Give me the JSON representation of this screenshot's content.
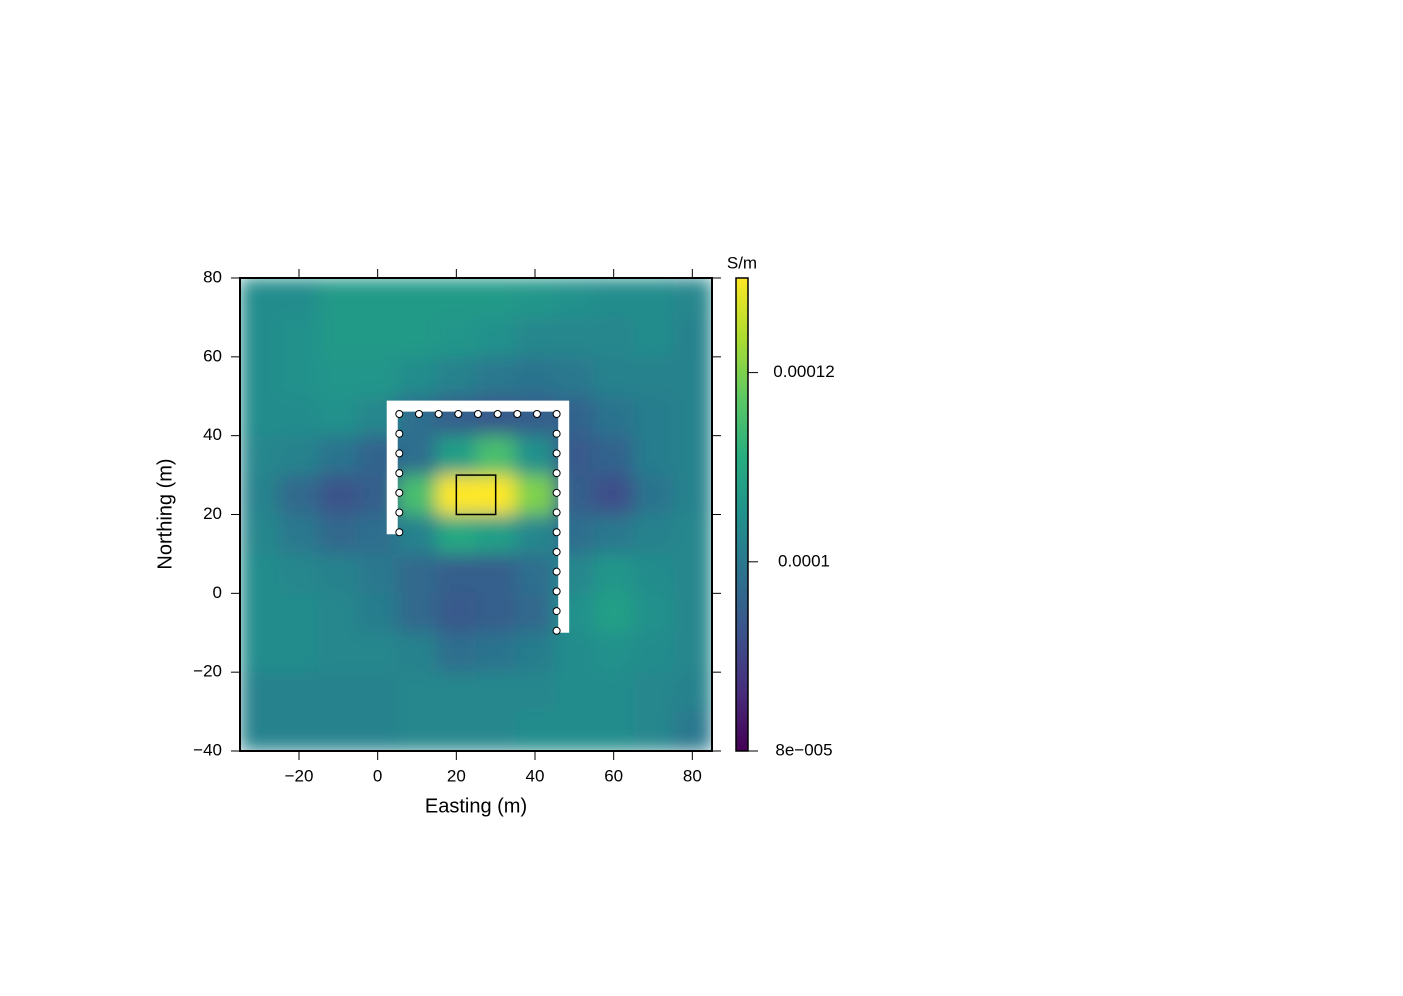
{
  "chart_data": {
    "type": "heatmap",
    "xlabel": "Easting (m)",
    "ylabel": "Northing (m)",
    "xlim": [
      -35,
      85
    ],
    "ylim": [
      -40,
      80
    ],
    "xticks": [
      {
        "value": -20,
        "label": "−20"
      },
      0,
      20,
      40,
      60,
      80
    ],
    "yticks": [
      {
        "value": -40,
        "label": "−40"
      },
      {
        "value": -20,
        "label": "−20"
      },
      0,
      20,
      40,
      60,
      80
    ],
    "colormap": "viridis",
    "clim": [
      8e-05,
      0.00013
    ],
    "cbar_label": "S/m",
    "cbar_ticks": [
      {
        "value": 8e-05,
        "label": "8e−005"
      },
      0.0001,
      0.00012
    ],
    "x": [
      -30,
      -20,
      -10,
      0,
      10,
      20,
      30,
      40,
      50,
      60,
      70,
      80
    ],
    "y": [
      75,
      65,
      55,
      45,
      35,
      25,
      15,
      5,
      -5,
      -15,
      -25,
      -35
    ],
    "z": [
      [
        0.000104,
        0.000104,
        0.000107,
        0.000107,
        0.000107,
        0.000107,
        0.000107,
        0.000106,
        0.000105,
        0.000104,
        0.000104,
        0.000103
      ],
      [
        0.000104,
        0.000105,
        0.000107,
        0.000107,
        0.000107,
        0.000106,
        0.000105,
        0.000103,
        0.000103,
        0.000103,
        0.000104,
        0.000102
      ],
      [
        0.000104,
        0.000105,
        0.000106,
        0.000106,
        0.000104,
        0.000102,
        0.0001,
        9.9e-05,
        0.0001,
        0.000102,
        0.000102,
        0.000102
      ],
      [
        0.000104,
        0.000104,
        0.000105,
        0.000103,
        9.8e-05,
        9.5e-05,
        9.4e-05,
        9.5e-05,
        9.6e-05,
        9.9e-05,
        0.000101,
        0.000102
      ],
      [
        0.000103,
        0.000102,
        9.9e-05,
        9.6e-05,
        9.8e-05,
        0.000108,
        0.000115,
        0.000105,
        9.4e-05,
        9.6e-05,
        0.000101,
        0.000102
      ],
      [
        0.000102,
        9.7e-05,
        9.3e-05,
        9.5e-05,
        0.000115,
        0.000132,
        0.000132,
        0.00012,
        9.5e-05,
        9.2e-05,
        9.9e-05,
        0.000102
      ],
      [
        0.000103,
        0.0001,
        9.7e-05,
        9.8e-05,
        0.000102,
        0.00011,
        0.000108,
        0.000103,
        9.8e-05,
        0.0001,
        0.000102,
        0.000103
      ],
      [
        0.000104,
        0.000103,
        0.000102,
        0.0001,
        9.7e-05,
        9.5e-05,
        9.5e-05,
        9.8e-05,
        0.000103,
        0.000106,
        0.000104,
        0.000103
      ],
      [
        0.000104,
        0.000104,
        0.000103,
        0.000101,
        9.7e-05,
        9.4e-05,
        9.5e-05,
        9.7e-05,
        0.000105,
        0.000108,
        0.000105,
        0.000103
      ],
      [
        0.000104,
        0.000104,
        0.000103,
        0.000103,
        0.000102,
        9.8e-05,
        9.9e-05,
        0.000101,
        0.000104,
        0.000105,
        0.000104,
        0.000103
      ],
      [
        0.000102,
        0.000102,
        0.000102,
        0.000102,
        0.000103,
        0.000103,
        0.000103,
        0.000103,
        0.000104,
        0.000104,
        0.000103,
        0.000102
      ],
      [
        0.000102,
        0.000102,
        0.000102,
        0.000102,
        0.000103,
        0.000103,
        0.000103,
        0.000104,
        0.000104,
        0.000104,
        0.000103,
        0.0001
      ]
    ],
    "line": {
      "color": "#ffffff",
      "x": [
        3.7,
        3.7,
        47.3,
        47.3
      ],
      "y": [
        15,
        47.5,
        47.5,
        -10
      ]
    },
    "stations": {
      "color": "#ffffff",
      "x": [
        5.5,
        5.5,
        5.5,
        5.5,
        5.5,
        5.5,
        5.5,
        10.5,
        15.5,
        20.5,
        25.5,
        30.5,
        35.5,
        40.5,
        45.5,
        45.5,
        45.5,
        45.5,
        45.5,
        45.5,
        45.5,
        45.5,
        45.5,
        45.5,
        45.5,
        45.5
      ],
      "y": [
        45.5,
        40.5,
        35.5,
        30.5,
        25.5,
        20.5,
        15.5,
        45.5,
        45.5,
        45.5,
        45.5,
        45.5,
        45.5,
        45.5,
        45.5,
        40.5,
        35.5,
        30.5,
        25.5,
        20.5,
        15.5,
        10.5,
        5.5,
        0.5,
        -4.5,
        -9.5
      ]
    },
    "box": {
      "x": [
        20,
        30
      ],
      "y": [
        20,
        30
      ]
    }
  }
}
